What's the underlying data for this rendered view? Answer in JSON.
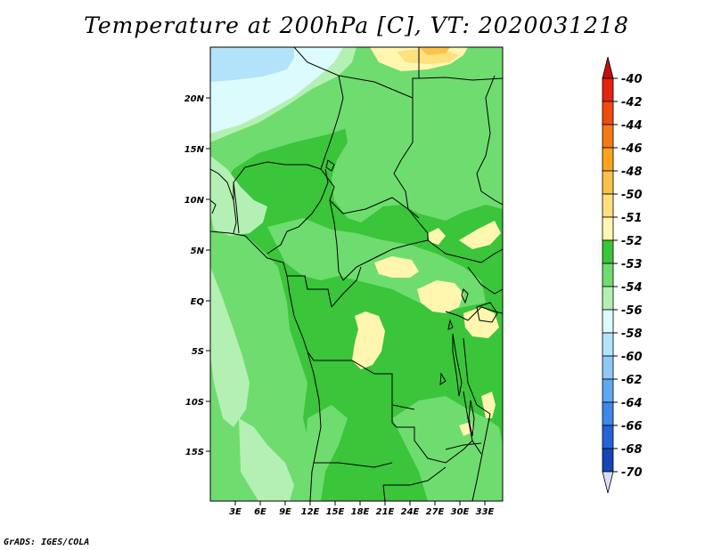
{
  "title": "Temperature at 200hPa [C], VT: 2020031218",
  "credit": "GrADS: IGES/COLA",
  "lat_ticks": [
    "20N",
    "15N",
    "10N",
    "5N",
    "EQ",
    "5S",
    "10S",
    "15S"
  ],
  "lon_ticks": [
    "3E",
    "6E",
    "9E",
    "12E",
    "15E",
    "18E",
    "21E",
    "24E",
    "27E",
    "30E",
    "33E"
  ],
  "colorbar": {
    "levels": [
      {
        "label": "-40",
        "color": "#e8220c"
      },
      {
        "label": "-42",
        "color": "#f04a0e"
      },
      {
        "label": "-44",
        "color": "#f77a10"
      },
      {
        "label": "-46",
        "color": "#fba31c"
      },
      {
        "label": "-48",
        "color": "#fcc24a"
      },
      {
        "label": "-50",
        "color": "#fde07f"
      },
      {
        "label": "-51",
        "color": "#fff6b0"
      },
      {
        "label": "-52",
        "color": "#3ac53a"
      },
      {
        "label": "-53",
        "color": "#6fdc6f"
      },
      {
        "label": "-54",
        "color": "#b4f0b4"
      },
      {
        "label": "-56",
        "color": "#dcfbfc"
      },
      {
        "label": "-58",
        "color": "#b3e3fb"
      },
      {
        "label": "-60",
        "color": "#8dc8f6"
      },
      {
        "label": "-62",
        "color": "#5ea8f0"
      },
      {
        "label": "-64",
        "color": "#3d88e8"
      },
      {
        "label": "-66",
        "color": "#2464d8"
      },
      {
        "label": "-68",
        "color": "#1446b6"
      },
      {
        "label": "-70",
        "color": "#0a2078"
      }
    ],
    "top_arrow_color": "#c0100b",
    "bottom_arrow_color": "#dcdcf8"
  },
  "map_colors": {
    "c52": "#3ac53a",
    "c53": "#6fdc6f",
    "c54": "#b4f0b4",
    "c56": "#dcfbfc",
    "c58": "#b3e3fb",
    "c60": "#8dc8f6",
    "c51": "#fff6b0",
    "c50": "#fde07f",
    "c48": "#fcc24a"
  }
}
